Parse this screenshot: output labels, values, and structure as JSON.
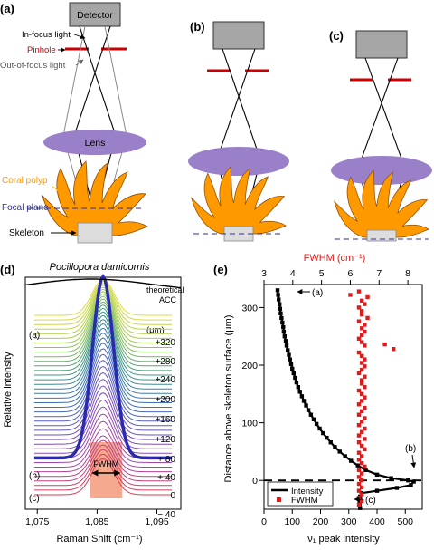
{
  "panel_labels": {
    "a": "(a)",
    "b": "(b)",
    "c": "(c)",
    "d": "(d)",
    "e": "(e)"
  },
  "schematic": {
    "detector": "Detector",
    "in_focus_light": "In-focus light",
    "pinhole": "Pinhole",
    "out_of_focus_light": "Out-of-focus light",
    "lens": "Lens",
    "coral_polyp": "Coral polyp",
    "focal_plane": "Focal plane",
    "skeleton": "Skeleton"
  },
  "colors": {
    "detector_fill": "#a6a6a6",
    "pinhole": "#cc0000",
    "lens": "#9a80c8",
    "coral": "#ff9900",
    "skeleton": "#dcdcdc",
    "focal_plane": "#2f2f9a",
    "fwhm_box": "#f5a98f",
    "highlight": "#2a2ab0",
    "fwhm_points": "#e01b1b"
  },
  "chart_data": [
    {
      "type": "line",
      "panel": "(d)",
      "title": "Pocillopora damicornis",
      "xlabel": "Raman Shift (cm⁻¹)",
      "ylabel": "Relative intensity",
      "x_ticks": [
        "1,075",
        "1,085",
        "1,095"
      ],
      "xlim": [
        1073,
        1099
      ],
      "peak_center": 1086,
      "annotations": {
        "theoretical": "theoretical",
        "acc": "ACC",
        "fwhm": "FWHM",
        "unit": "(μm)"
      },
      "curve_labels": [
        {
          "text": "(a)",
          "offset": "+320"
        },
        {
          "text": "",
          "offset": "+280"
        },
        {
          "text": "",
          "offset": "+240"
        },
        {
          "text": "",
          "offset": "+200"
        },
        {
          "text": "",
          "offset": "+160"
        },
        {
          "text": "",
          "offset": "+120"
        },
        {
          "text": "",
          "offset": "+ 80"
        },
        {
          "text": "",
          "offset": "+ 40"
        },
        {
          "text": "(b)",
          "offset": "0"
        },
        {
          "text": "(c)",
          "offset": "− 40"
        }
      ],
      "n_curves": 40
    },
    {
      "type": "scatter",
      "panel": "(e)",
      "xlabel": "ν₁ peak intensity",
      "x2label": "FWHM (cm⁻¹)",
      "ylabel": "Distance above skeleton surface (μm)",
      "xlim": [
        0,
        560
      ],
      "x2lim": [
        3,
        8.5
      ],
      "ylim": [
        -50,
        340
      ],
      "x_ticks": [
        0,
        100,
        200,
        300,
        400,
        500
      ],
      "x2_ticks": [
        3,
        4,
        5,
        6,
        7,
        8
      ],
      "y_ticks": [
        0,
        100,
        200,
        300
      ],
      "legend": [
        {
          "label": "Intensity",
          "style": "line"
        },
        {
          "label": "FWHM",
          "style": "square"
        }
      ],
      "annotations": {
        "a": "(a)",
        "b": "(b)",
        "c": "(c)"
      },
      "series": [
        {
          "name": "Intensity",
          "points": [
            [
              48,
              330
            ],
            [
              50,
              322
            ],
            [
              52,
              314
            ],
            [
              55,
              306
            ],
            [
              57,
              298
            ],
            [
              59,
              290
            ],
            [
              62,
              282
            ],
            [
              65,
              274
            ],
            [
              68,
              266
            ],
            [
              70,
              258
            ],
            [
              73,
              250
            ],
            [
              77,
              242
            ],
            [
              80,
              234
            ],
            [
              84,
              226
            ],
            [
              88,
              218
            ],
            [
              92,
              210
            ],
            [
              96,
              202
            ],
            [
              100,
              194
            ],
            [
              105,
              186
            ],
            [
              110,
              178
            ],
            [
              115,
              170
            ],
            [
              121,
              162
            ],
            [
              127,
              154
            ],
            [
              134,
              146
            ],
            [
              141,
              138
            ],
            [
              149,
              130
            ],
            [
              157,
              122
            ],
            [
              166,
              114
            ],
            [
              176,
              106
            ],
            [
              186,
              98
            ],
            [
              197,
              90
            ],
            [
              209,
              82
            ],
            [
              222,
              74
            ],
            [
              236,
              66
            ],
            [
              251,
              58
            ],
            [
              268,
              50
            ],
            [
              287,
              42
            ],
            [
              308,
              34
            ],
            [
              332,
              26
            ],
            [
              360,
              18
            ],
            [
              400,
              10
            ],
            [
              450,
              4
            ],
            [
              510,
              0
            ],
            [
              530,
              -2
            ],
            [
              520,
              -8
            ],
            [
              470,
              -13
            ],
            [
              400,
              -18
            ],
            [
              345,
              -22
            ],
            [
              340,
              -28
            ],
            [
              338,
              -35
            ],
            [
              338,
              -42
            ],
            [
              340,
              -48
            ]
          ]
        },
        {
          "name": "FWHM",
          "points": [
            [
              6.3,
              328
            ],
            [
              6.0,
              322
            ],
            [
              6.6,
              318
            ],
            [
              6.4,
              312
            ],
            [
              6.5,
              306
            ],
            [
              6.3,
              300
            ],
            [
              6.4,
              294
            ],
            [
              6.4,
              288
            ],
            [
              6.6,
              282
            ],
            [
              6.3,
              276
            ],
            [
              6.5,
              270
            ],
            [
              6.4,
              264
            ],
            [
              6.5,
              258
            ],
            [
              6.4,
              252
            ],
            [
              6.3,
              246
            ],
            [
              7.2,
              236
            ],
            [
              6.4,
              240
            ],
            [
              6.5,
              234
            ],
            [
              7.5,
              228
            ],
            [
              6.3,
              222
            ],
            [
              6.4,
              216
            ],
            [
              6.5,
              210
            ],
            [
              6.4,
              204
            ],
            [
              6.5,
              198
            ],
            [
              6.4,
              192
            ],
            [
              6.3,
              186
            ],
            [
              6.5,
              180
            ],
            [
              6.4,
              174
            ],
            [
              6.4,
              168
            ],
            [
              6.5,
              162
            ],
            [
              6.3,
              156
            ],
            [
              6.4,
              150
            ],
            [
              6.5,
              144
            ],
            [
              6.4,
              138
            ],
            [
              6.3,
              132
            ],
            [
              6.5,
              126
            ],
            [
              6.4,
              120
            ],
            [
              6.3,
              114
            ],
            [
              6.5,
              108
            ],
            [
              6.4,
              102
            ],
            [
              6.3,
              96
            ],
            [
              6.5,
              90
            ],
            [
              6.4,
              84
            ],
            [
              6.3,
              78
            ],
            [
              6.5,
              72
            ],
            [
              6.3,
              66
            ],
            [
              6.4,
              60
            ],
            [
              6.5,
              54
            ],
            [
              6.3,
              48
            ],
            [
              6.4,
              42
            ],
            [
              6.3,
              36
            ],
            [
              6.4,
              30
            ],
            [
              6.5,
              24
            ],
            [
              6.3,
              18
            ],
            [
              6.4,
              12
            ],
            [
              6.3,
              6
            ],
            [
              6.4,
              0
            ],
            [
              6.3,
              -6
            ],
            [
              6.4,
              -12
            ],
            [
              6.3,
              -18
            ],
            [
              6.4,
              -24
            ],
            [
              6.3,
              -30
            ],
            [
              6.4,
              -36
            ],
            [
              6.3,
              -42
            ]
          ]
        }
      ]
    }
  ]
}
